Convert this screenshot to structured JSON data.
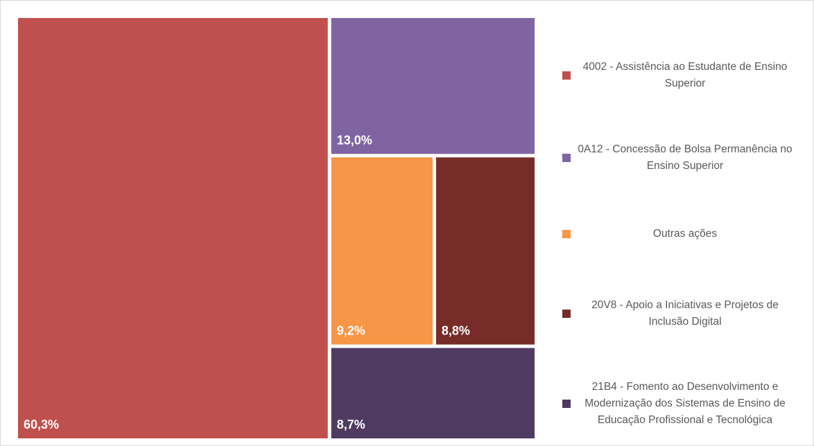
{
  "chart_data": {
    "type": "treemap",
    "categories": [
      "4002 - Assistência ao Estudante de Ensino Superior",
      "0A12 - Concessão de Bolsa Permanência no Ensino Superior",
      "Outras ações",
      "20V8 - Apoio a Iniciativas e Projetos de Inclusão Digital",
      "21B4 - Fomento ao Desenvolvimento e Modernização dos Sistemas de Ensino de Educação Profissional e Tecnológica"
    ],
    "values": [
      60.3,
      13.0,
      9.2,
      8.8,
      8.7
    ],
    "value_labels": [
      "60,3%",
      "13,0%",
      "9,2%",
      "8,8%",
      "8,7%"
    ],
    "colors": [
      "#c0504d",
      "#8064a2",
      "#f79646",
      "#772c2a",
      "#4f3b62"
    ],
    "legend": "right"
  }
}
